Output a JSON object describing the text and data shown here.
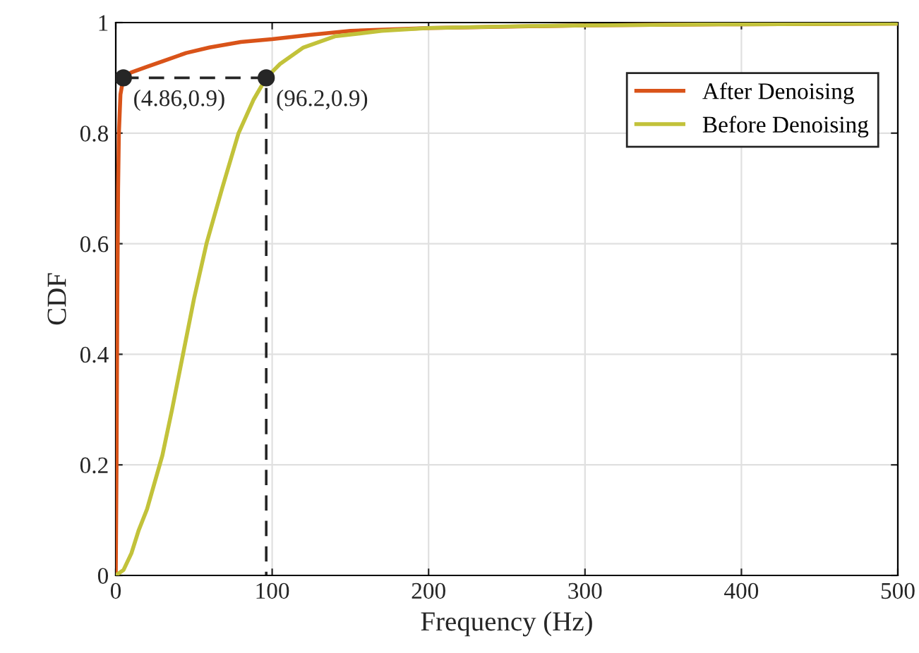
{
  "chart_data": {
    "type": "line",
    "xlabel": "Frequency (Hz)",
    "ylabel": "CDF",
    "xlim": [
      0,
      500
    ],
    "ylim": [
      0,
      1
    ],
    "xticks": [
      0,
      100,
      200,
      300,
      400,
      500
    ],
    "yticks": [
      0,
      0.2,
      0.4,
      0.6,
      0.8,
      1
    ],
    "grid": true,
    "legend": "top right",
    "line_style": "solid",
    "marker": "none",
    "series": [
      {
        "name": "After Denoising",
        "color": "#d95319",
        "x": [
          0,
          0.5,
          1,
          1.5,
          2,
          3,
          4.86,
          10,
          20,
          30,
          45,
          60,
          80,
          100,
          125,
          150,
          200,
          300,
          400,
          500
        ],
        "values": [
          0,
          0.2,
          0.5,
          0.7,
          0.8,
          0.87,
          0.9,
          0.91,
          0.92,
          0.93,
          0.945,
          0.955,
          0.965,
          0.97,
          0.978,
          0.985,
          0.99,
          0.995,
          0.997,
          0.998
        ]
      },
      {
        "name": "Before Denoising",
        "color": "#c2c23a",
        "x": [
          0,
          5,
          10,
          14.7,
          20,
          29.8,
          36,
          43,
          50,
          58,
          68,
          78.5,
          88,
          96.2,
          105,
          120,
          140,
          170,
          200,
          250,
          300,
          400,
          500
        ],
        "values": [
          0,
          0.01,
          0.04,
          0.082,
          0.12,
          0.217,
          0.3,
          0.4,
          0.5,
          0.6,
          0.7,
          0.8,
          0.86,
          0.9,
          0.925,
          0.955,
          0.975,
          0.985,
          0.99,
          0.993,
          0.995,
          0.997,
          0.998
        ]
      },
      {
        "type": "line",
        "color": "#262626",
        "line_style": "dashed",
        "x": [
          4.86,
          96.2,
          96.2
        ],
        "values": [
          0.9,
          0.9,
          0
        ]
      },
      {
        "type": "scatter",
        "color": "#262626",
        "marker": "circle",
        "x": [
          4.86,
          96.2
        ],
        "values": [
          0.9,
          0.9
        ]
      }
    ],
    "annotations": [
      {
        "text": "(4.86,0.9)",
        "x": 4.86,
        "y": 0.9
      },
      {
        "text": "(96.2,0.9)",
        "x": 96.2,
        "y": 0.9
      }
    ]
  }
}
